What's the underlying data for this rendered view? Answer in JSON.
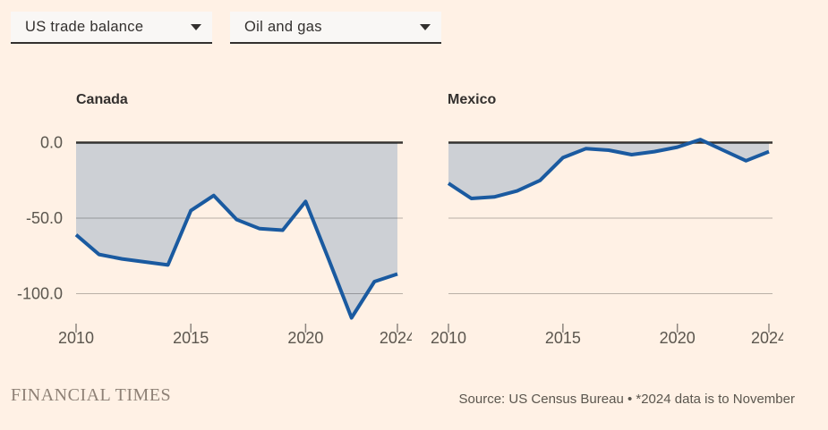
{
  "page": {
    "background_color": "#FFF1E5"
  },
  "controls": {
    "metric_dropdown": {
      "value": "US trade balance"
    },
    "category_dropdown": {
      "value": "Oil and gas"
    }
  },
  "footer": {
    "brand": "FINANCIAL TIMES",
    "source": "Source: US Census Bureau • *2024 data is to November"
  },
  "chart_data": [
    {
      "type": "area",
      "title": "Canada",
      "x": [
        2010,
        2011,
        2012,
        2013,
        2014,
        2015,
        2016,
        2017,
        2018,
        2019,
        2020,
        2021,
        2022,
        2023,
        2024
      ],
      "values": [
        -61,
        -74,
        -77,
        -79,
        -81,
        -45,
        -35,
        -51,
        -57,
        -58,
        -39,
        -77,
        -116,
        -92,
        -87
      ],
      "ylim": [
        -125,
        5
      ],
      "yticks": [
        0,
        -50,
        -100
      ],
      "ytick_labels": [
        "0.0",
        "-50.0",
        "-100.0"
      ],
      "xticks": [
        2010,
        2015,
        2020,
        2024
      ],
      "xtick_labels": [
        "2010",
        "2015",
        "2020",
        "2024"
      ],
      "grid": true,
      "legend": "none",
      "line_color": "#1A5AA0",
      "fill_color": "#CDD0D5"
    },
    {
      "type": "area",
      "title": "Mexico",
      "x": [
        2010,
        2011,
        2012,
        2013,
        2014,
        2015,
        2016,
        2017,
        2018,
        2019,
        2020,
        2021,
        2022,
        2023,
        2024
      ],
      "values": [
        -27,
        -37,
        -36,
        -32,
        -25,
        -10,
        -4,
        -5,
        -8,
        -6,
        -3,
        2,
        -5,
        -12,
        -6
      ],
      "ylim": [
        -125,
        5
      ],
      "yticks": [
        0,
        -50,
        -100
      ],
      "ytick_labels": [],
      "xticks": [
        2010,
        2015,
        2020,
        2024
      ],
      "xtick_labels": [
        "2010",
        "2015",
        "2020",
        "2024"
      ],
      "grid": true,
      "legend": "none",
      "line_color": "#1A5AA0",
      "fill_color": "#CDD0D5"
    }
  ]
}
